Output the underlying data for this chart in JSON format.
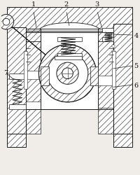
{
  "fig_width": 2.0,
  "fig_height": 2.5,
  "dpi": 100,
  "bg_color": "#f0ede8",
  "line_color": "#1a1a1a",
  "label_color": "#111111",
  "label_fontsize": 7,
  "gray_fill": "#c8c0b0",
  "light_gray": "#e0d8cc",
  "white_fill": "#ffffff"
}
